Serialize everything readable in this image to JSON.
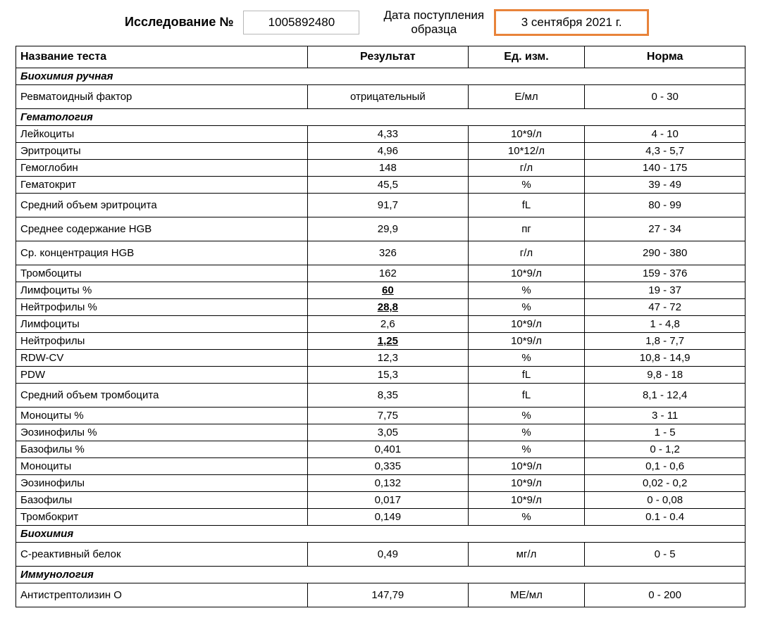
{
  "header": {
    "study_label": "Исследование №",
    "study_number": "1005892480",
    "date_label_line1": "Дата поступления",
    "date_label_line2": "образца",
    "date_value": "3 сентября 2021 г."
  },
  "columns": {
    "name": "Название теста",
    "result": "Результат",
    "unit": "Ед. изм.",
    "norm": "Норма"
  },
  "sections": [
    {
      "title": "Биохимия ручная",
      "rows": [
        {
          "name": "Ревматоидный фактор",
          "result": "отрицательный",
          "unit": "Е/мл",
          "norm": "0 - 30",
          "tall": true
        }
      ]
    },
    {
      "title": "Гематология",
      "rows": [
        {
          "name": "Лейкоциты",
          "result": "4,33",
          "unit": "10*9/л",
          "norm": "4 - 10"
        },
        {
          "name": "Эритроциты",
          "result": "4,96",
          "unit": "10*12/л",
          "norm": "4,3 - 5,7"
        },
        {
          "name": "Гемоглобин",
          "result": "148",
          "unit": "г/л",
          "norm": "140 - 175"
        },
        {
          "name": "Гематокрит",
          "result": "45,5",
          "unit": "%",
          "norm": "39 - 49"
        },
        {
          "name": "Средний объем эритроцита",
          "result": "91,7",
          "unit": "fL",
          "norm": "80 - 99",
          "tall": true
        },
        {
          "name": "Среднее содержание HGB",
          "result": "29,9",
          "unit": "пг",
          "norm": "27 - 34",
          "tall": true
        },
        {
          "name": "Ср. концентрация HGB",
          "result": "326",
          "unit": "г/л",
          "norm": "290 - 380",
          "tall": true
        },
        {
          "name": "Тромбоциты",
          "result": "162",
          "unit": "10*9/л",
          "norm": "159 - 376"
        },
        {
          "name": "Лимфоциты %",
          "result": "60",
          "unit": "%",
          "norm": "19 - 37",
          "abnormal": true
        },
        {
          "name": "Нейтрофилы %",
          "result": "28,8",
          "unit": "%",
          "norm": "47 - 72",
          "abnormal": true
        },
        {
          "name": "Лимфоциты",
          "result": "2,6",
          "unit": "10*9/л",
          "norm": "1 - 4,8"
        },
        {
          "name": "Нейтрофилы",
          "result": "1,25",
          "unit": "10*9/л",
          "norm": "1,8 - 7,7",
          "abnormal": true
        },
        {
          "name": "RDW-CV",
          "result": "12,3",
          "unit": "%",
          "norm": "10,8 - 14,9"
        },
        {
          "name": "PDW",
          "result": "15,3",
          "unit": "fL",
          "norm": "9,8 - 18"
        },
        {
          "name": "Средний объем тромбоцита",
          "result": "8,35",
          "unit": "fL",
          "norm": "8,1 - 12,4",
          "tall": true
        },
        {
          "name": "Моноциты %",
          "result": "7,75",
          "unit": "%",
          "norm": "3 - 11"
        },
        {
          "name": "Эозинофилы %",
          "result": "3,05",
          "unit": "%",
          "norm": "1 - 5"
        },
        {
          "name": "Базофилы %",
          "result": "0,401",
          "unit": "%",
          "norm": "0 - 1,2"
        },
        {
          "name": "Моноциты",
          "result": "0,335",
          "unit": "10*9/л",
          "norm": "0,1 - 0,6"
        },
        {
          "name": "Эозинофилы",
          "result": "0,132",
          "unit": "10*9/л",
          "norm": "0,02 - 0,2"
        },
        {
          "name": "Базофилы",
          "result": "0,017",
          "unit": "10*9/л",
          "norm": "0 - 0,08"
        },
        {
          "name": "Тромбокрит",
          "result": "0,149",
          "unit": "%",
          "norm": "0.1 - 0.4"
        }
      ]
    },
    {
      "title": "Биохимия",
      "rows": [
        {
          "name": "С-реактивный белок",
          "result": "0,49",
          "unit": "мг/л",
          "norm": "0 - 5",
          "tall": true
        }
      ]
    },
    {
      "title": "Иммунология",
      "rows": [
        {
          "name": "Антистрептолизин О",
          "result": "147,79",
          "unit": "МЕ/мл",
          "norm": "0 - 200",
          "tall": true
        }
      ]
    }
  ]
}
